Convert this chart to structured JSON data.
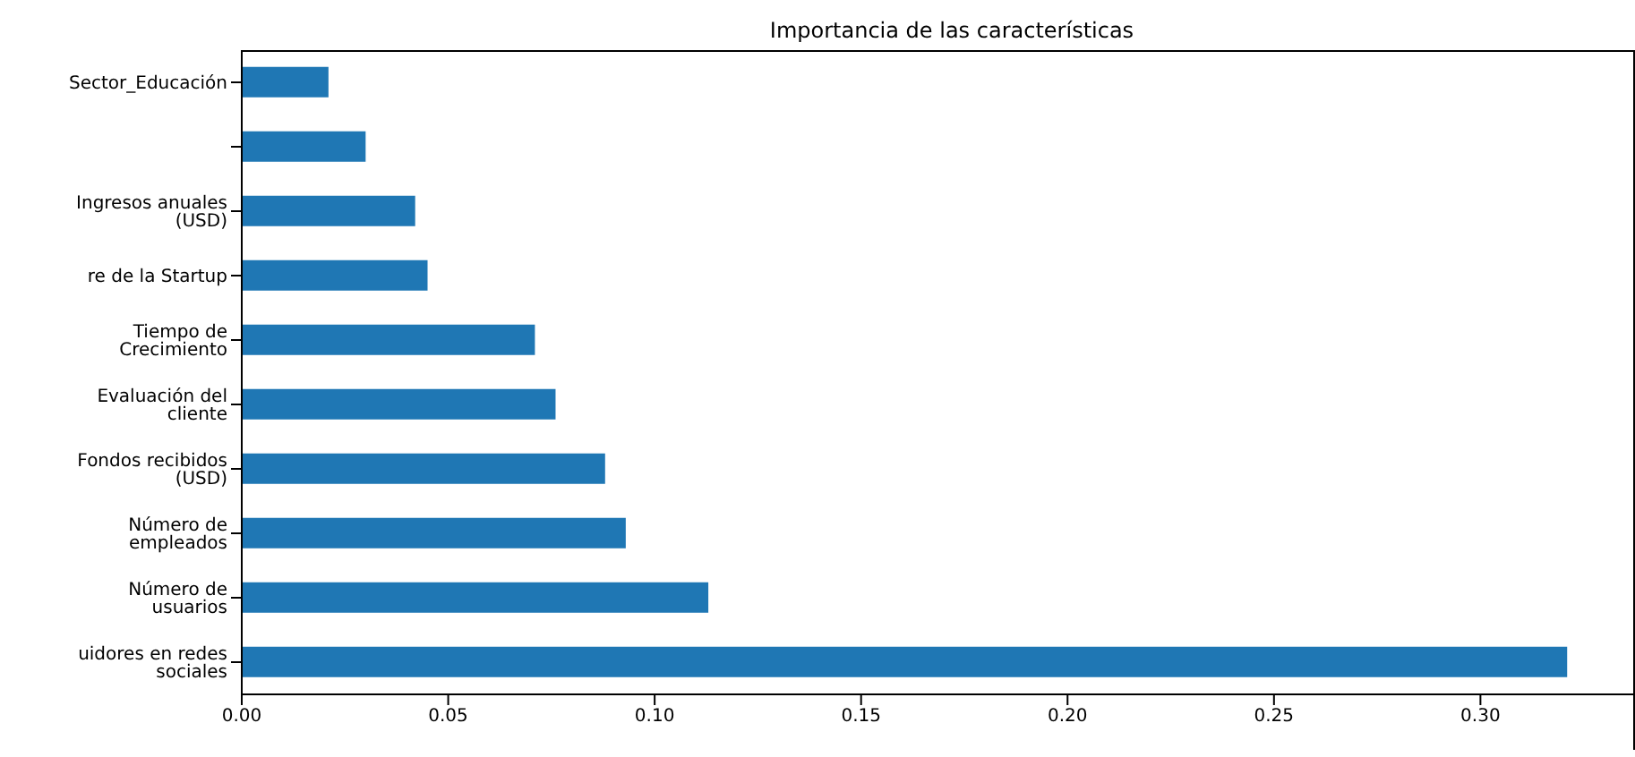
{
  "chart_data": {
    "type": "bar",
    "orientation": "horizontal",
    "title": "Importancia de las características",
    "categories": [
      "Sector_Educación",
      null,
      "Ingresos anuales (USD)",
      "re de la Startup",
      "Tiempo de Crecimiento",
      "Evaluación del cliente",
      "Fondos recibidos (USD)",
      "Número de empleados",
      "Número de usuarios",
      "uidores en redes sociales"
    ],
    "values": [
      0.021,
      0.03,
      0.042,
      0.045,
      0.071,
      0.076,
      0.088,
      0.093,
      0.113,
      0.321
    ],
    "color": "#1f77b4",
    "xlim": [
      0,
      0.337
    ],
    "xticks": [
      {
        "value": 0,
        "label": "0.00"
      },
      {
        "value": 0.05,
        "label": "0.05"
      },
      {
        "value": 0.1,
        "label": "0.10"
      },
      {
        "value": 0.15,
        "label": "0.15"
      },
      {
        "value": 0.2,
        "label": "0.20"
      },
      {
        "value": 0.25,
        "label": "0.25"
      },
      {
        "value": 0.3,
        "label": "0.30"
      }
    ],
    "grid": false,
    "legend": false
  }
}
